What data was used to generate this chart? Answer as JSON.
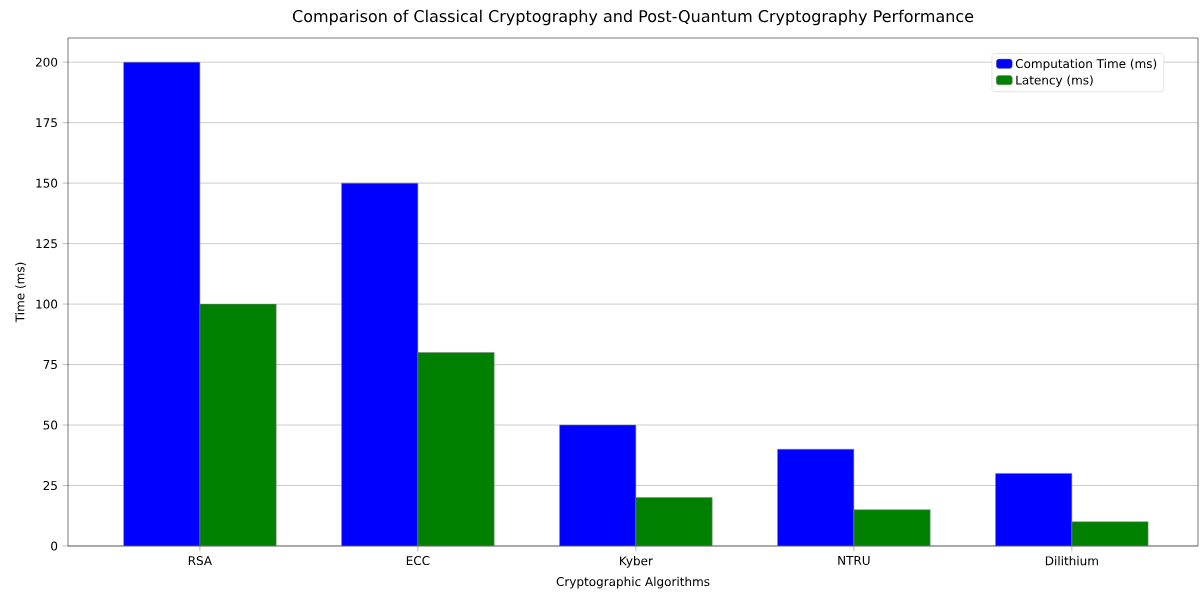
{
  "chart_data": {
    "type": "bar",
    "title": "Comparison of Classical Cryptography and Post-Quantum Cryptography Performance",
    "xlabel": "Cryptographic Algorithms",
    "ylabel": "Time (ms)",
    "categories": [
      "RSA",
      "ECC",
      "Kyber",
      "NTRU",
      "Dilithium"
    ],
    "series": [
      {
        "name": "Computation Time (ms)",
        "color": "#0000ff",
        "values": [
          200,
          150,
          50,
          40,
          30
        ]
      },
      {
        "name": "Latency (ms)",
        "color": "#008000",
        "values": [
          100,
          80,
          20,
          15,
          10
        ]
      }
    ],
    "ylim": [
      0,
      210
    ],
    "yticks": [
      0,
      25,
      50,
      75,
      100,
      125,
      150,
      175,
      200
    ],
    "grid": "y",
    "legend": "top right"
  }
}
